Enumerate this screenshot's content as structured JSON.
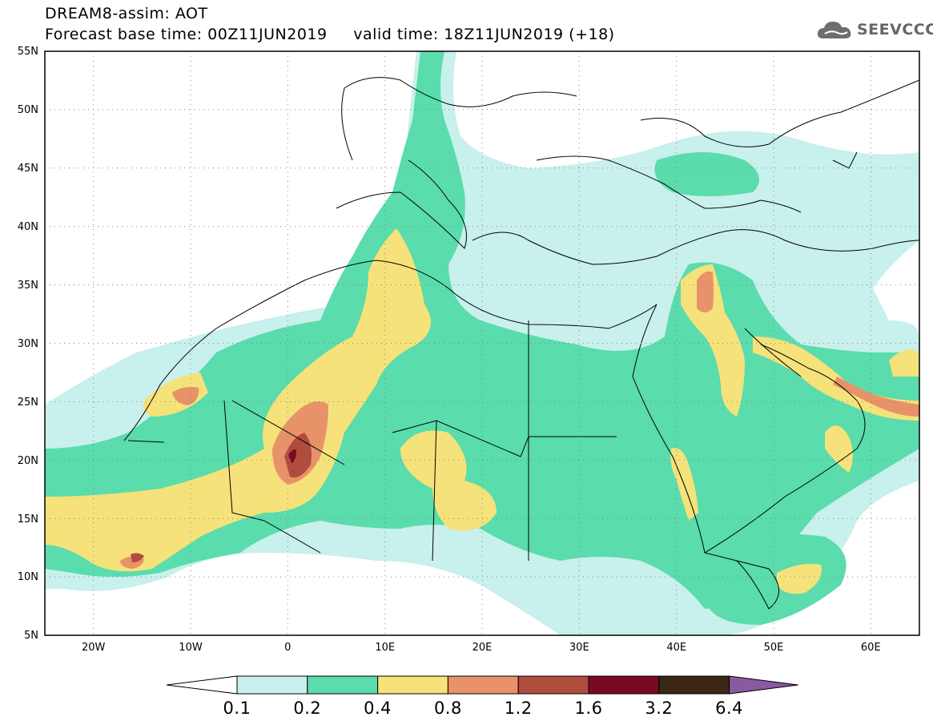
{
  "header": {
    "title_line1": "DREAM8-assim: AOT",
    "title_line2": "Forecast base time: 00Z11JUN2019     valid time: 18Z11JUN2019 (+18)"
  },
  "logo": {
    "text": "SEEVCCC",
    "icon": "cloud-icon"
  },
  "map": {
    "lat_labels": [
      "55N",
      "50N",
      "45N",
      "40N",
      "35N",
      "30N",
      "25N",
      "20N",
      "15N",
      "10N",
      "5N"
    ],
    "lon_labels": [
      "20W",
      "10W",
      "0",
      "10E",
      "20E",
      "30E",
      "40E",
      "50E",
      "60E"
    ],
    "lat_range": [
      5,
      55
    ],
    "lon_range": [
      -25,
      65
    ],
    "gridlines": "dotted"
  },
  "colorbar": {
    "labels": [
      "0.1",
      "0.2",
      "0.4",
      "0.8",
      "1.2",
      "1.6",
      "3.2",
      "6.4"
    ],
    "colors": [
      "#c8f0ec",
      "#5adcac",
      "#f5e27a",
      "#e8926a",
      "#b04c3e",
      "#7a0a22",
      "#3a2716",
      "#8a5aa0"
    ],
    "below_color": "#ffffff"
  }
}
